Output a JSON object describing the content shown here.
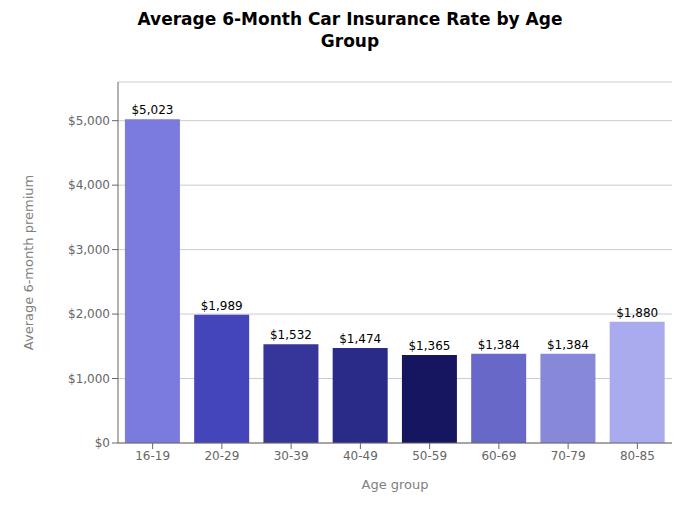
{
  "chart_data": {
    "type": "bar",
    "title": "Average 6-Month Car Insurance Rate by Age\nGroup",
    "xlabel": "Age group",
    "ylabel": "Average 6-month premium",
    "categories": [
      "16-19",
      "20-29",
      "30-39",
      "40-49",
      "50-59",
      "60-69",
      "70-79",
      "80-85"
    ],
    "values": [
      5023,
      1989,
      1532,
      1474,
      1365,
      1384,
      1384,
      1880
    ],
    "value_labels": [
      "$5,023",
      "$1,989",
      "$1,532",
      "$1,474",
      "$1,365",
      "$1,384",
      "$1,384",
      "$1,880"
    ],
    "data_labels": true,
    "colors": [
      "#7b7bdd",
      "#4545bb",
      "#36369a",
      "#2a2a88",
      "#151560",
      "#6868c8",
      "#8888d8",
      "#aaaaee"
    ],
    "ylim": [
      0,
      5600
    ],
    "yticks": [
      {
        "value": 0,
        "label": "$0"
      },
      {
        "value": 1000,
        "label": "$1,000"
      },
      {
        "value": 2000,
        "label": "$2,000"
      },
      {
        "value": 3000,
        "label": "$3,000"
      },
      {
        "value": 4000,
        "label": "$4,000"
      },
      {
        "value": 5000,
        "label": "$5,000"
      }
    ],
    "grid": true
  }
}
